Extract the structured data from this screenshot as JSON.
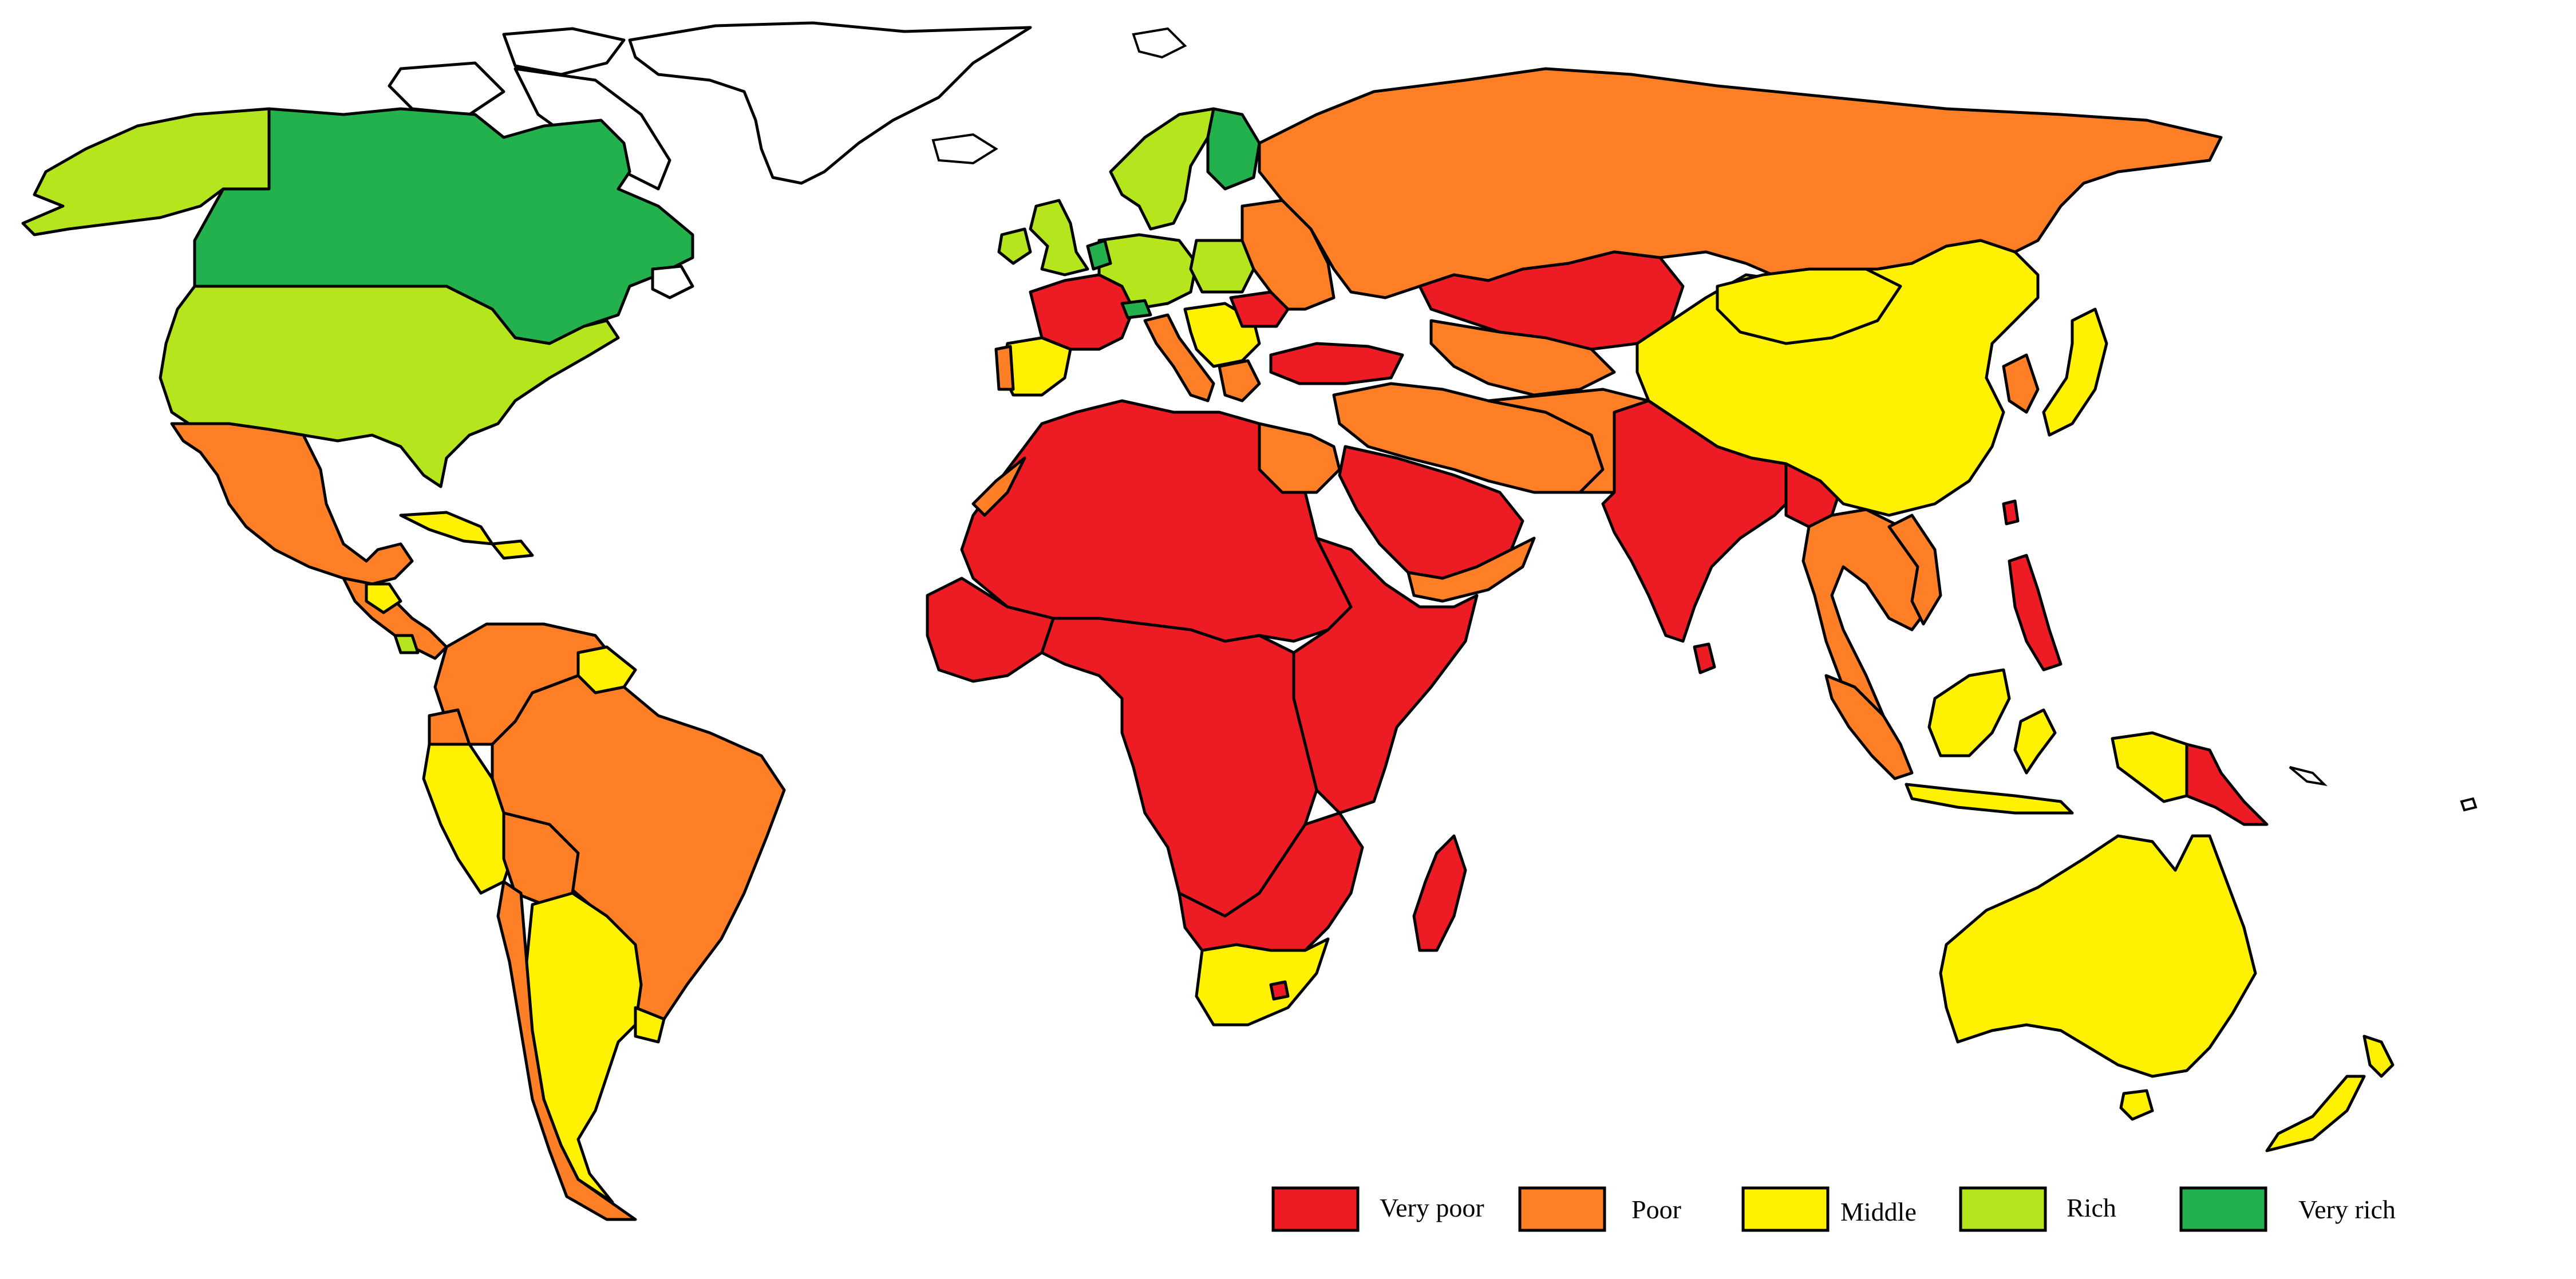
{
  "map": {
    "title": "",
    "classes": [
      {
        "key": "very_poor",
        "label": "Very poor",
        "color": "#ed1c24"
      },
      {
        "key": "poor",
        "label": "Poor",
        "color": "#ff7f27"
      },
      {
        "key": "middle",
        "label": "Middle",
        "color": "#fff200"
      },
      {
        "key": "rich",
        "label": "Rich",
        "color": "#b5e61d"
      },
      {
        "key": "very_rich",
        "label": "Very rich",
        "color": "#22b14c"
      }
    ],
    "no_data_color": "#ffffff"
  },
  "legend": {
    "items": [
      {
        "label": "Very poor",
        "color": "#ed1c24"
      },
      {
        "label": "Poor",
        "color": "#ff7f27"
      },
      {
        "label": "Middle",
        "color": "#fff200"
      },
      {
        "label": "Rich",
        "color": "#b5e61d"
      },
      {
        "label": "Very rich",
        "color": "#22b14c"
      }
    ]
  }
}
